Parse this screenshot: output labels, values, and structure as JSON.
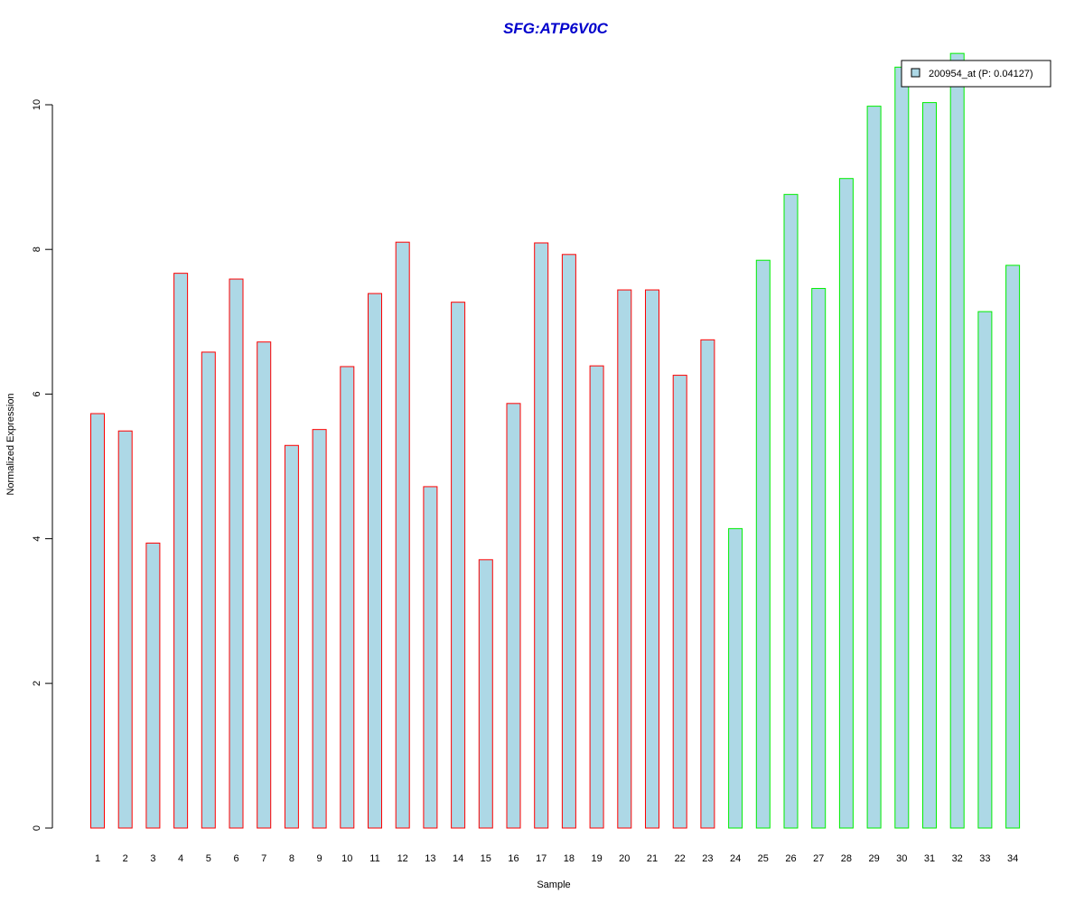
{
  "chart_data": {
    "type": "bar",
    "title": "SFG:ATP6V0C",
    "xlabel": "Sample",
    "ylabel": "Normalized Expression",
    "categories": [
      "1",
      "2",
      "3",
      "4",
      "5",
      "6",
      "7",
      "8",
      "9",
      "10",
      "11",
      "12",
      "13",
      "14",
      "15",
      "16",
      "17",
      "18",
      "19",
      "20",
      "21",
      "22",
      "23",
      "24",
      "25",
      "26",
      "27",
      "28",
      "29",
      "30",
      "31",
      "32",
      "33",
      "34"
    ],
    "series": [
      {
        "name": "200954_at (P: 0.04127)",
        "values": [
          5.73,
          5.49,
          3.94,
          7.67,
          6.58,
          7.59,
          6.72,
          5.29,
          5.51,
          6.38,
          7.39,
          8.1,
          4.72,
          7.27,
          3.71,
          5.87,
          8.09,
          7.93,
          6.39,
          7.44,
          7.44,
          6.26,
          6.75,
          4.14,
          7.85,
          8.76,
          7.46,
          8.98,
          9.98,
          10.52,
          10.03,
          10.71,
          7.14,
          7.78
        ]
      }
    ],
    "group_borders": [
      "#ff0000",
      "#ff0000",
      "#ff0000",
      "#ff0000",
      "#ff0000",
      "#ff0000",
      "#ff0000",
      "#ff0000",
      "#ff0000",
      "#ff0000",
      "#ff0000",
      "#ff0000",
      "#ff0000",
      "#ff0000",
      "#ff0000",
      "#ff0000",
      "#ff0000",
      "#ff0000",
      "#ff0000",
      "#ff0000",
      "#ff0000",
      "#ff0000",
      "#ff0000",
      "#00ee00",
      "#00ee00",
      "#00ee00",
      "#00ee00",
      "#00ee00",
      "#00ee00",
      "#00ee00",
      "#00ee00",
      "#00ee00",
      "#00ee00",
      "#00ee00"
    ],
    "yticks": [
      0,
      2,
      4,
      6,
      8,
      10
    ],
    "ylim": [
      0,
      10.8
    ],
    "grid": false,
    "legend_position": "top-right",
    "bar_fill": "#add8e6",
    "title_color": "#0000cc"
  }
}
